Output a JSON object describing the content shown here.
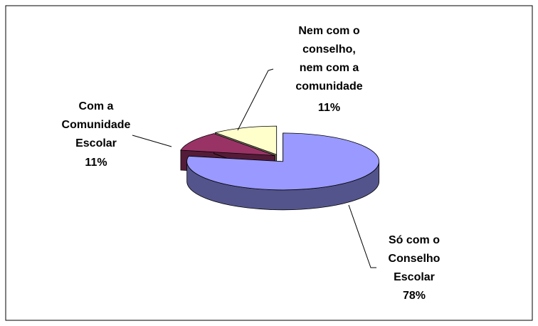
{
  "chart_data": {
    "type": "pie",
    "categories": [
      "Só com o Conselho Escolar",
      "Com a Comunidade Escolar",
      "Nem com o conselho, nem com a comunidade"
    ],
    "values": [
      78,
      11,
      11
    ],
    "value_labels": [
      "78%",
      "11%",
      "11%"
    ],
    "colors": [
      "#9999ff",
      "#993366",
      "#ffffcc"
    ]
  }
}
